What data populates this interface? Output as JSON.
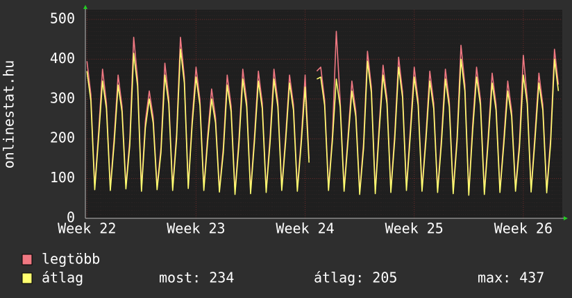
{
  "chart_data": {
    "type": "line",
    "ylabel": "onlinestat.hu",
    "x": [
      0,
      0.25,
      0.5,
      0.75,
      1,
      1.25,
      1.5,
      1.75,
      2,
      2.25,
      2.5,
      2.75,
      3,
      3.25,
      3.5,
      3.75,
      4,
      4.25,
      4.5,
      4.75,
      5,
      5.25,
      5.5,
      5.75,
      6,
      6.25,
      6.5,
      6.75,
      7,
      7.25,
      7.5,
      7.75,
      8,
      8.25,
      8.5,
      8.75,
      9,
      9.25,
      9.5,
      9.75,
      10,
      10.25,
      10.5,
      10.75,
      11,
      11.25,
      11.5,
      11.75,
      12,
      12.25,
      12.5,
      12.75,
      13,
      13.25,
      13.5,
      13.75,
      14,
      14.25,
      14.5,
      14.75,
      15,
      15.25,
      15.5,
      15.75,
      16,
      16.25,
      16.5,
      16.75,
      17,
      17.25,
      17.5,
      17.75,
      18,
      18.25,
      18.5,
      18.75,
      19,
      19.25,
      19.5,
      19.75,
      20,
      20.25,
      20.5,
      20.75,
      21,
      21.25,
      21.5,
      21.75,
      22,
      22.25,
      22.5,
      22.75,
      23,
      23.25,
      23.5,
      23.75,
      24,
      24.25,
      24.5,
      24.75,
      25,
      25.25,
      25.5,
      25.75,
      26,
      26.25,
      26.5,
      26.75,
      27,
      27.25,
      27.5,
      27.75,
      28,
      28.25,
      28.5,
      28.75,
      29,
      29.25,
      29.5,
      29.75,
      30,
      30.25
    ],
    "series": [
      {
        "name": "legtöbb",
        "color": "#f07882",
        "values": [
          395,
          312,
          78,
          218,
          375,
          290,
          76,
          205,
          360,
          282,
          80,
          198,
          455,
          350,
          74,
          245,
          320,
          255,
          78,
          178,
          390,
          302,
          76,
          212,
          455,
          355,
          80,
          248,
          380,
          298,
          76,
          210,
          325,
          254,
          72,
          178,
          360,
          282,
          66,
          198,
          375,
          295,
          68,
          207,
          370,
          290,
          70,
          204,
          375,
          294,
          76,
          206,
          360,
          286,
          74,
          200,
          360,
          150,
          null,
          370,
          380,
          298,
          76,
          208,
          470,
          294,
          74,
          206,
          345,
          270,
          66,
          190,
          420,
          330,
          68,
          232,
          385,
          302,
          70,
          212,
          405,
          318,
          76,
          224,
          380,
          298,
          74,
          208,
          370,
          290,
          70,
          204,
          375,
          294,
          68,
          206,
          435,
          336,
          64,
          236,
          380,
          298,
          66,
          208,
          365,
          286,
          70,
          200,
          345,
          270,
          74,
          190,
          410,
          302,
          72,
          212,
          365,
          286,
          70,
          200,
          425,
          336
        ]
      },
      {
        "name": "átlag",
        "color": "#ffff70",
        "values": [
          370,
          296,
          72,
          204,
          345,
          276,
          70,
          190,
          335,
          268,
          74,
          184,
          415,
          332,
          68,
          228,
          300,
          240,
          72,
          165,
          360,
          288,
          70,
          198,
          425,
          340,
          75,
          234,
          355,
          284,
          70,
          195,
          300,
          240,
          66,
          165,
          335,
          268,
          60,
          184,
          350,
          280,
          62,
          193,
          345,
          276,
          65,
          190,
          350,
          280,
          70,
          193,
          340,
          272,
          68,
          187,
          330,
          140,
          null,
          350,
          355,
          284,
          70,
          195,
          350,
          280,
          68,
          193,
          320,
          256,
          60,
          176,
          395,
          316,
          62,
          217,
          360,
          288,
          65,
          198,
          380,
          304,
          70,
          209,
          355,
          284,
          68,
          195,
          345,
          276,
          65,
          190,
          350,
          280,
          62,
          193,
          400,
          320,
          58,
          220,
          355,
          284,
          60,
          195,
          340,
          272,
          65,
          187,
          320,
          256,
          68,
          176,
          360,
          288,
          66,
          198,
          340,
          272,
          64,
          187,
          400,
          320
        ]
      }
    ],
    "xlim": [
      -0.1,
      30.5
    ],
    "xticks": [
      {
        "value": 0,
        "label": "Week 22"
      },
      {
        "value": 7,
        "label": "Week 23"
      },
      {
        "value": 14,
        "label": "Week 24"
      },
      {
        "value": 21,
        "label": "Week 25"
      },
      {
        "value": 28,
        "label": "Week 26"
      }
    ],
    "ylim": [
      0,
      500
    ],
    "yticks": [
      0,
      100,
      200,
      300,
      400,
      500
    ],
    "grid": true,
    "stats": [
      "most: 234",
      "átlag: 205",
      "max: 437"
    ]
  }
}
